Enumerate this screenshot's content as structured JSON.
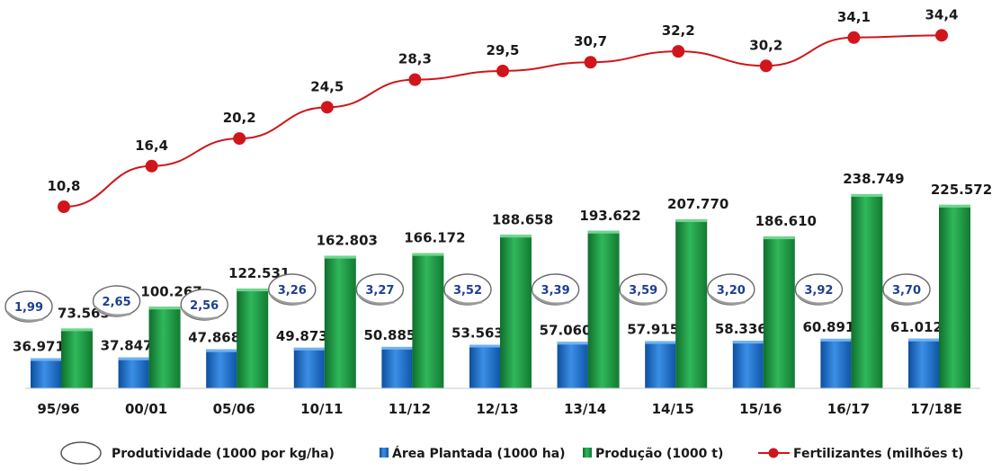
{
  "chart_data": {
    "type": "bar",
    "categories": [
      "95/96",
      "00/01",
      "05/06",
      "10/11",
      "11/12",
      "12/13",
      "13/14",
      "14/15",
      "15/16",
      "16/17",
      "17/18E"
    ],
    "series": [
      {
        "name": "Área Plantada (1000 ha)",
        "kind": "bar",
        "color": "#1f6fc6",
        "values": [
          36971,
          37847,
          47868,
          49873,
          50885,
          53563,
          57060,
          57915,
          58336,
          60891,
          61012
        ],
        "labels": [
          "36.971",
          "37.847",
          "47.868",
          "49.873",
          "50.885",
          "53.563",
          "57.060",
          "57.915",
          "58.336",
          "60.891",
          "61.012"
        ]
      },
      {
        "name": "Produção (1000 t)",
        "kind": "bar",
        "color": "#1e9a44",
        "values": [
          73565,
          100267,
          122531,
          162803,
          166172,
          188658,
          193622,
          207770,
          186610,
          238749,
          225572
        ],
        "labels": [
          "73.565",
          "100.267",
          "122.531",
          "162.803",
          "166.172",
          "188.658",
          "193.622",
          "207.770",
          "186.610",
          "238.749",
          "225.572"
        ]
      },
      {
        "name": "Fertilizantes (milhões t)",
        "kind": "line",
        "color": "#d0161b",
        "values": [
          10.8,
          16.4,
          20.2,
          24.5,
          28.3,
          29.5,
          30.7,
          32.2,
          30.2,
          34.1,
          34.4
        ],
        "labels": [
          "10,8",
          "16,4",
          "20,2",
          "24,5",
          "28,3",
          "29,5",
          "30,7",
          "32,2",
          "30,2",
          "34,1",
          "34,4"
        ]
      },
      {
        "name": "Produtividade (1000 por kg/ha)",
        "kind": "circle-label",
        "color": "#1f3f8f",
        "values": [
          1.99,
          2.65,
          2.56,
          3.26,
          3.27,
          3.52,
          3.39,
          3.59,
          3.2,
          3.92,
          3.7
        ],
        "labels": [
          "1,99",
          "2,65",
          "2,56",
          "3,26",
          "3,27",
          "3,52",
          "3,39",
          "3,59",
          "3,20",
          "3,92",
          "3,70"
        ]
      }
    ],
    "legend_position": "bottom",
    "grid": false,
    "title": "",
    "xlabel": "",
    "ylabel": ""
  },
  "legend": {
    "produtividade": "Produtividade (1000 por kg/ha)",
    "area": "Área Plantada (1000 ha)",
    "producao": "Produção (1000 t)",
    "fertilizantes": "Fertilizantes (milhões t)"
  }
}
